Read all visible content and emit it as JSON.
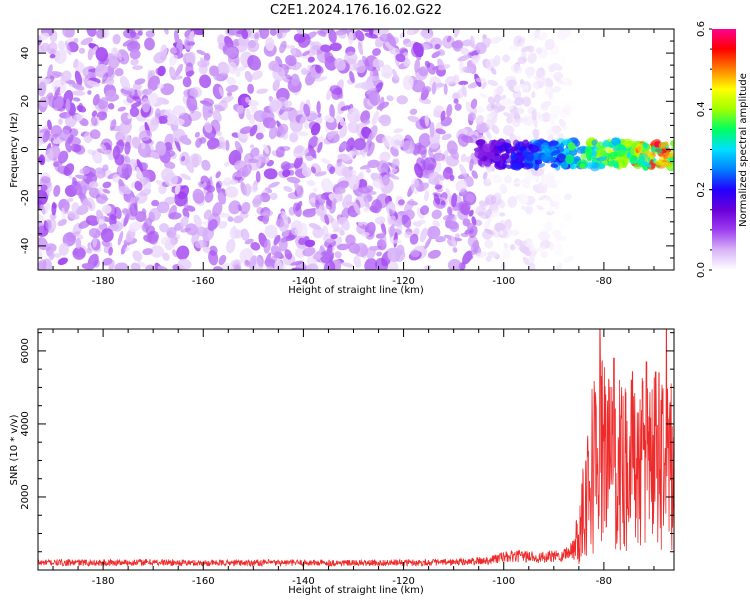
{
  "title": "C2E1.2024.176.16.02.G22",
  "chart_data": [
    {
      "type": "heatmap",
      "xlabel": "Height of straight line (km)",
      "ylabel": "Frequency (Hz)",
      "xlim": [
        -193,
        -66
      ],
      "ylim": [
        -50,
        50
      ],
      "xticks": [
        -180,
        -160,
        -140,
        -120,
        -100,
        -80
      ],
      "yticks": [
        -40,
        -20,
        0,
        20,
        40
      ],
      "colorbar": {
        "label": "Normalized spectral amplitude",
        "range": [
          0.0,
          0.6
        ],
        "ticks": [
          "0.0",
          "0.2",
          "0.4",
          "0.6"
        ],
        "colormap": [
          "#ffffff",
          "#d8b4f8",
          "#9d3cf0",
          "#6a00d8",
          "#2200ff",
          "#0080ff",
          "#00e0ff",
          "#00ff60",
          "#a0ff00",
          "#ffff00",
          "#ff8000",
          "#ff0000",
          "#ff0090"
        ]
      },
      "noise_region": {
        "x": [
          -193,
          -105
        ],
        "freq": [
          -50,
          50
        ],
        "amplitude": 0.06
      },
      "fading_region": {
        "x": [
          -105,
          -87
        ],
        "freq": [
          -50,
          50
        ],
        "amplitude": 0.03
      },
      "signal_band": {
        "x": [
          -105,
          -66
        ],
        "freq_center": -2,
        "freq_width": 8,
        "amplitude": 0.5
      }
    },
    {
      "type": "line",
      "xlabel": "Height of straight line (km)",
      "ylabel": "SNR (10 * v/v)",
      "xlim": [
        -193,
        -66
      ],
      "ylim": [
        0,
        6600
      ],
      "xticks": [
        -180,
        -160,
        -140,
        -120,
        -100,
        -80
      ],
      "yticks": [
        2000,
        4000,
        6000
      ],
      "series": [
        {
          "color": "#ee2a2a",
          "x": [
            -193,
            -180,
            -170,
            -160,
            -150,
            -140,
            -130,
            -120,
            -110,
            -104,
            -100,
            -96,
            -92,
            -88,
            -86,
            -85,
            -84,
            -82,
            -80,
            -78,
            -76,
            -74,
            -72,
            -70,
            -68,
            -66
          ],
          "y": [
            200,
            200,
            210,
            190,
            200,
            200,
            190,
            200,
            210,
            250,
            350,
            380,
            330,
            420,
            600,
            1000,
            2000,
            3000,
            3400,
            2600,
            3000,
            3100,
            2800,
            3200,
            3000,
            2700
          ],
          "peaks": [
            [
              -80.8,
              6600
            ],
            [
              -78,
              5800
            ],
            [
              -74.5,
              5200
            ],
            [
              -71.5,
              5700
            ],
            [
              -69,
              5400
            ],
            [
              -67.5,
              6600
            ]
          ]
        }
      ]
    }
  ]
}
